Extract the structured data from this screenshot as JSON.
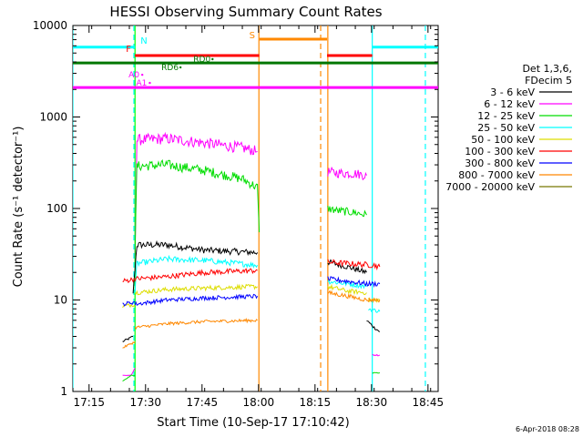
{
  "chart_data": {
    "type": "line",
    "title": "HESSI Observing Summary Count Rates",
    "xlabel": "Start Time (10-Sep-17 17:10:42)",
    "ylabel": "Count Rate (s⁻¹ detector⁻¹)",
    "x_unit": "minutes after 17:10:42",
    "xlim": [
      0,
      97
    ],
    "ylim": [
      1,
      10000
    ],
    "yscale": "log",
    "grid": false,
    "legend_placement": "right",
    "x_ticks": [
      {
        "t": 4.3,
        "label": "17:15"
      },
      {
        "t": 19.3,
        "label": "17:30"
      },
      {
        "t": 34.3,
        "label": "17:45"
      },
      {
        "t": 49.3,
        "label": "18:00"
      },
      {
        "t": 64.3,
        "label": "18:15"
      },
      {
        "t": 79.3,
        "label": "18:30"
      },
      {
        "t": 94.3,
        "label": "18:45"
      }
    ],
    "y_ticks": [
      {
        "v": 1,
        "label": "1"
      },
      {
        "v": 10,
        "label": "10"
      },
      {
        "v": 100,
        "label": "100"
      },
      {
        "v": 1000,
        "label": "1000"
      },
      {
        "v": 10000,
        "label": "10000"
      }
    ],
    "legend_header": [
      "Det 1,3,6,",
      "FDecim 5"
    ],
    "series": [
      {
        "name": "3 - 6 keV",
        "color": "#000000",
        "segments": [
          [
            [
              13.2,
              3.5
            ],
            [
              15.0,
              3.8
            ],
            [
              16.0,
              4.0
            ]
          ],
          [
            [
              16.0,
              12.0
            ],
            [
              17.0,
              40.0
            ],
            [
              25.0,
              40.0
            ],
            [
              35.0,
              35.0
            ],
            [
              49.0,
              33.0
            ]
          ],
          [
            [
              67.7,
              26.0
            ],
            [
              73.0,
              23.0
            ],
            [
              78.0,
              20.0
            ]
          ],
          [
            [
              78.0,
              6.0
            ],
            [
              80.0,
              5.0
            ],
            [
              81.5,
              4.5
            ]
          ]
        ]
      },
      {
        "name": "6 - 12 keV",
        "color": "#ff00ff",
        "segments": [
          [
            [
              13.2,
              1.5
            ],
            [
              15.5,
              1.5
            ],
            [
              16.5,
              1.8
            ]
          ],
          [
            [
              16.5,
              30.0
            ],
            [
              17.0,
              560.0
            ],
            [
              25.0,
              580.0
            ],
            [
              35.0,
              520.0
            ],
            [
              45.0,
              460.0
            ],
            [
              49.0,
              420.0
            ]
          ],
          [
            [
              67.7,
              250.0
            ],
            [
              70.0,
              245.0
            ],
            [
              75.0,
              240.0
            ],
            [
              78.0,
              230.0
            ]
          ],
          [
            [
              79.5,
              2.5
            ],
            [
              81.5,
              2.5
            ]
          ]
        ]
      },
      {
        "name": "12 - 25 keV",
        "color": "#00dd00",
        "segments": [
          [
            [
              13.2,
              1.3
            ],
            [
              15.5,
              1.5
            ],
            [
              16.5,
              1.5
            ]
          ],
          [
            [
              16.5,
              30.0
            ],
            [
              17.0,
              290.0
            ],
            [
              25.0,
              300.0
            ],
            [
              35.0,
              260.0
            ],
            [
              45.0,
              210.0
            ],
            [
              49.0,
              170.0
            ],
            [
              49.5,
              55.0
            ]
          ],
          [
            [
              67.7,
              100.0
            ],
            [
              70.0,
              95.0
            ],
            [
              75.0,
              90.0
            ],
            [
              78.0,
              85.0
            ]
          ],
          [
            [
              79.5,
              1.6
            ],
            [
              81.5,
              1.6
            ]
          ]
        ]
      },
      {
        "name": "25 - 50 keV",
        "color": "#00ffff",
        "segments": [
          [
            [
              16.5,
              12.0
            ],
            [
              17.0,
              25.0
            ],
            [
              25.0,
              28.0
            ],
            [
              35.0,
              27.0
            ],
            [
              49.0,
              24.0
            ]
          ],
          [
            [
              67.7,
              16.0
            ],
            [
              73.0,
              15.0
            ],
            [
              78.0,
              14.0
            ]
          ],
          [
            [
              78.5,
              8.0
            ],
            [
              81.5,
              7.5
            ]
          ]
        ]
      },
      {
        "name": "50 - 100 keV",
        "color": "#dddd00",
        "segments": [
          [
            [
              13.2,
              8.5
            ],
            [
              16.5,
              9.0
            ]
          ],
          [
            [
              16.5,
              12.0
            ],
            [
              25.0,
              13.0
            ],
            [
              35.0,
              13.5
            ],
            [
              49.0,
              14.0
            ]
          ],
          [
            [
              67.7,
              14.0
            ],
            [
              73.0,
              12.5
            ],
            [
              78.0,
              12.0
            ]
          ],
          [
            [
              78.5,
              10.0
            ],
            [
              81.5,
              10.0
            ]
          ]
        ]
      },
      {
        "name": "100 - 300 keV",
        "color": "#ff0000",
        "segments": [
          [
            [
              13.2,
              16.0
            ],
            [
              16.5,
              17.0
            ]
          ],
          [
            [
              16.5,
              17.0
            ],
            [
              25.0,
              18.0
            ],
            [
              35.0,
              20.0
            ],
            [
              49.0,
              21.0
            ]
          ],
          [
            [
              67.7,
              26.0
            ],
            [
              73.0,
              25.0
            ],
            [
              80.0,
              24.0
            ],
            [
              81.5,
              23.0
            ]
          ]
        ]
      },
      {
        "name": "300 - 800 keV",
        "color": "#0000ff",
        "segments": [
          [
            [
              13.2,
              9.0
            ],
            [
              16.5,
              9.5
            ]
          ],
          [
            [
              16.5,
              9.0
            ],
            [
              25.0,
              10.0
            ],
            [
              35.0,
              10.5
            ],
            [
              49.0,
              11.0
            ]
          ],
          [
            [
              67.7,
              17.0
            ],
            [
              73.0,
              16.0
            ],
            [
              78.0,
              15.0
            ],
            [
              81.5,
              15.0
            ]
          ]
        ]
      },
      {
        "name": "800 - 7000 keV",
        "color": "#ff8800",
        "segments": [
          [
            [
              13.2,
              3.0
            ],
            [
              16.5,
              3.5
            ]
          ],
          [
            [
              16.5,
              5.0
            ],
            [
              25.0,
              5.5
            ],
            [
              35.0,
              5.8
            ],
            [
              49.0,
              6.0
            ]
          ],
          [
            [
              67.7,
              12.0
            ],
            [
              73.0,
              11.0
            ],
            [
              78.0,
              10.0
            ],
            [
              81.5,
              10.0
            ]
          ]
        ]
      },
      {
        "name": "7000 - 20000 keV",
        "color": "#777700",
        "segments": []
      }
    ],
    "annotations": {
      "lines": [
        {
          "label": "N",
          "color": "#00ffff",
          "value": 5800,
          "spans": [
            [
              0,
              16.5
            ],
            [
              79.5,
              97
            ]
          ]
        },
        {
          "label": "F",
          "color": "#ff0000",
          "value": 4700,
          "spans": [
            [
              16.5,
              49.5
            ],
            [
              67.5,
              79.5
            ]
          ]
        },
        {
          "label": "S",
          "color": "#ff8800",
          "value": 7100,
          "spans": [
            [
              49.5,
              67.5
            ]
          ]
        },
        {
          "label": "",
          "color": "#007700",
          "value": 3900,
          "spans": [
            [
              0,
              97
            ]
          ]
        },
        {
          "label": "",
          "color": "#ff00ff",
          "value": 2100,
          "spans": [
            [
              0,
              97
            ]
          ]
        }
      ],
      "labels": [
        {
          "text": "A0",
          "color": "#ff00ff",
          "t": 14.8,
          "v": 2700
        },
        {
          "text": "A1",
          "color": "#ff00ff",
          "t": 16.8,
          "v": 2200
        },
        {
          "text": "RD6",
          "color": "#007700",
          "t": 23.5,
          "v": 3250
        },
        {
          "text": "RD0",
          "color": "#007700",
          "t": 32.0,
          "v": 4000
        }
      ],
      "vlines": [
        {
          "t": 0.0,
          "color": "#00ffff",
          "style": "solid"
        },
        {
          "t": 16.2,
          "color": "#00ffff",
          "style": "dashed"
        },
        {
          "t": 16.5,
          "color": "#00ff00",
          "style": "solid"
        },
        {
          "t": 49.4,
          "color": "#ff8800",
          "style": "solid"
        },
        {
          "t": 65.8,
          "color": "#ff8800",
          "style": "dashed"
        },
        {
          "t": 67.7,
          "color": "#ff8800",
          "style": "solid"
        },
        {
          "t": 79.5,
          "color": "#00ffff",
          "style": "solid"
        },
        {
          "t": 93.6,
          "color": "#00ffff",
          "style": "dashed"
        }
      ]
    },
    "footer_timestamp": "6-Apr-2018 08:28"
  }
}
